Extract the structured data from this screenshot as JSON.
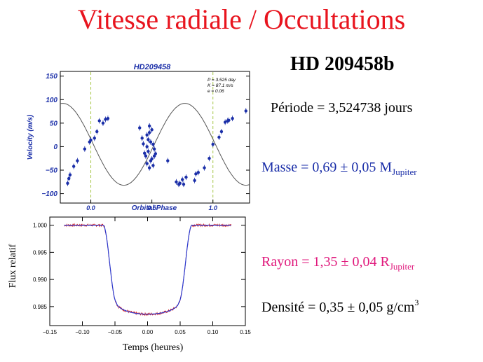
{
  "title": "Vitesse radiale / Occultations",
  "planet": "HD 209458b",
  "stats": {
    "periode_label": "Période = 3,524738 jours",
    "masse_label": "Masse = 0,69 ± 0,05 M",
    "masse_sub": "Jupiter",
    "rayon_label": "Rayon = 1,35 ± 0,04 R",
    "rayon_sub": "Jupiter",
    "densite_label": "Densité  = 0,35 ± 0,05 g/cm",
    "densite_sup": "3"
  },
  "chart_data": [
    {
      "type": "scatter",
      "title": "HD209458",
      "xlabel": "Orbital Phase",
      "ylabel": "Velocity (m/s)",
      "xlim": [
        -0.25,
        1.3
      ],
      "ylim": [
        -120,
        160
      ],
      "xticks": [
        {
          "v": 0.0,
          "label": "0.0"
        },
        {
          "v": 0.5,
          "label": "0.5"
        },
        {
          "v": 1.0,
          "label": "1.0"
        }
      ],
      "yticks": [
        {
          "v": 150,
          "label": "150"
        },
        {
          "v": 100,
          "label": "100"
        },
        {
          "v": 50,
          "label": "50"
        },
        {
          "v": 0,
          "label": "0"
        },
        {
          "v": -50,
          "label": "−50"
        },
        {
          "v": -100,
          "label": "−100"
        }
      ],
      "vlines": [
        0.0,
        1.0
      ],
      "legend": [
        "P = 3.525 day",
        "K = 87.1 m/s",
        "e = 0.06"
      ],
      "model": {
        "K": 87.1,
        "offset": 5
      },
      "points": [
        [
          -0.19,
          -78
        ],
        [
          -0.18,
          -68
        ],
        [
          -0.17,
          -60
        ],
        [
          -0.14,
          -42
        ],
        [
          -0.11,
          -30
        ],
        [
          -0.05,
          -5
        ],
        [
          -0.01,
          10
        ],
        [
          0.0,
          14
        ],
        [
          0.03,
          18
        ],
        [
          0.05,
          32
        ],
        [
          0.07,
          55
        ],
        [
          0.1,
          50
        ],
        [
          0.12,
          58
        ],
        [
          0.14,
          60
        ],
        [
          0.4,
          40
        ],
        [
          0.42,
          18
        ],
        [
          0.43,
          6
        ],
        [
          0.44,
          -14
        ],
        [
          0.45,
          -20
        ],
        [
          0.46,
          -36
        ],
        [
          0.46,
          0
        ],
        [
          0.47,
          -10
        ],
        [
          0.47,
          15
        ],
        [
          0.48,
          30
        ],
        [
          0.48,
          44
        ],
        [
          0.49,
          10
        ],
        [
          0.49,
          -30
        ],
        [
          0.5,
          -26
        ],
        [
          0.5,
          36
        ],
        [
          0.51,
          -40
        ],
        [
          0.51,
          5
        ],
        [
          0.52,
          -5
        ],
        [
          0.52,
          -20
        ],
        [
          0.53,
          -15
        ],
        [
          0.46,
          25
        ],
        [
          0.48,
          -45
        ],
        [
          0.63,
          -30
        ],
        [
          0.7,
          -75
        ],
        [
          0.72,
          -80
        ],
        [
          0.73,
          -78
        ],
        [
          0.75,
          -70
        ],
        [
          0.76,
          -80
        ],
        [
          0.78,
          -65
        ],
        [
          0.85,
          -72
        ],
        [
          0.86,
          -58
        ],
        [
          0.88,
          -55
        ],
        [
          0.93,
          -45
        ],
        [
          0.97,
          -25
        ],
        [
          1.0,
          5
        ],
        [
          1.05,
          20
        ],
        [
          1.07,
          32
        ],
        [
          1.1,
          52
        ],
        [
          1.12,
          55
        ],
        [
          1.13,
          56
        ],
        [
          1.16,
          60
        ],
        [
          1.27,
          76
        ]
      ]
    },
    {
      "type": "line",
      "title": "",
      "xlabel": "Temps (heures)",
      "ylabel": "Flux relatif",
      "xlim": [
        -0.15,
        0.15
      ],
      "ylim": [
        0.9815,
        1.0015
      ],
      "xticks": [
        {
          "v": -0.15,
          "label": "−0.15"
        },
        {
          "v": -0.1,
          "label": "−0.10"
        },
        {
          "v": -0.05,
          "label": "−0.05"
        },
        {
          "v": 0.0,
          "label": "0.00"
        },
        {
          "v": 0.05,
          "label": "0.05"
        },
        {
          "v": 0.1,
          "label": "0.10"
        },
        {
          "v": 0.15,
          "label": "0.15"
        }
      ],
      "yticks": [
        {
          "v": 1.0,
          "label": "1.000"
        },
        {
          "v": 0.995,
          "label": "0.995"
        },
        {
          "v": 0.99,
          "label": "0.990"
        },
        {
          "v": 0.985,
          "label": "0.985"
        }
      ],
      "series": [
        {
          "color": "#d81818",
          "values_desc": "observed"
        },
        {
          "color": "#2a3ad0",
          "values_desc": "model"
        }
      ],
      "data_range": [
        -0.128,
        0.128
      ],
      "transit": {
        "depth": 0.0164,
        "t1": 0.068,
        "t2": 0.048,
        "limb": 0.55
      }
    }
  ],
  "colors": {
    "title": "#e8141e",
    "masse": "#1a2ea8",
    "rayon": "#e0187c",
    "model": "#2a3ad0",
    "obs": "#d81818",
    "points": "#1a2ea8",
    "vline": "#a8c84a"
  }
}
